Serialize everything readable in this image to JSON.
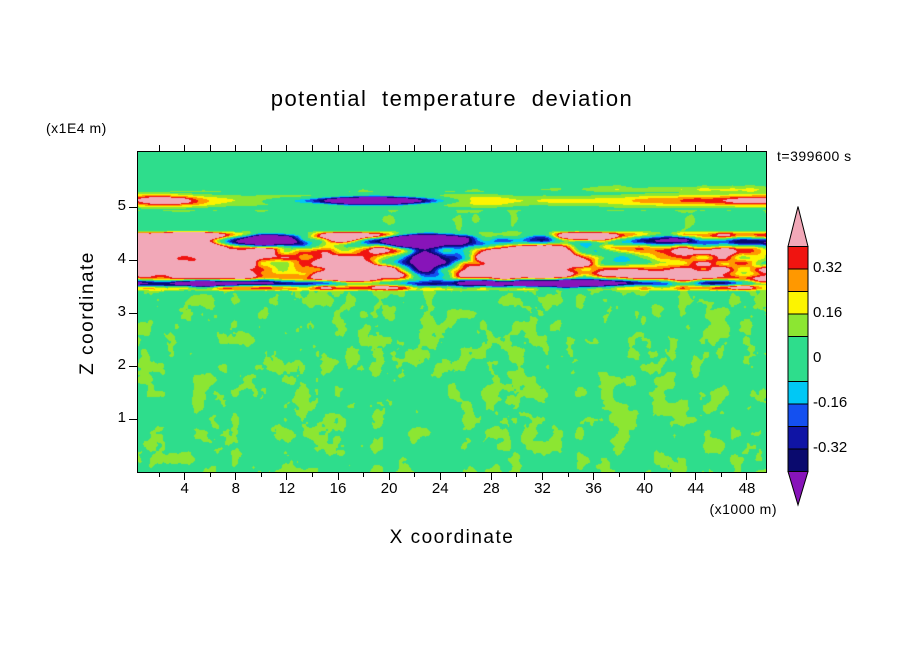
{
  "chart_data": {
    "type": "heatmap",
    "title": "potential temperature deviation",
    "time_label": "t=399600 s",
    "x_axis": {
      "label": "X coordinate",
      "unit": "(x1000 m)",
      "ticks": [
        4,
        8,
        12,
        16,
        20,
        24,
        28,
        32,
        36,
        40,
        44,
        48
      ],
      "minor_tick_step": 2,
      "range": [
        0,
        49.5
      ]
    },
    "y_axis": {
      "label": "Z coordinate",
      "unit": "(x1E4 m)",
      "ticks": [
        1,
        2,
        3,
        4,
        5
      ],
      "range": [
        0,
        6.05
      ]
    },
    "value_bands": [
      [
        -9,
        -0.4,
        "#8714B9"
      ],
      [
        -0.4,
        -0.32,
        "#0A0A6E"
      ],
      [
        -0.32,
        -0.24,
        "#0F14A5"
      ],
      [
        -0.24,
        -0.16,
        "#1450F0"
      ],
      [
        -0.16,
        -0.08,
        "#00C8F5"
      ],
      [
        -0.08,
        0.08,
        "#2EDD8C"
      ],
      [
        0.08,
        0.16,
        "#8CE632"
      ],
      [
        0.16,
        0.24,
        "#FCF400"
      ],
      [
        0.24,
        0.32,
        "#FF9800"
      ],
      [
        0.32,
        0.4,
        "#F01410"
      ],
      [
        0.4,
        9,
        "#F2A8B8"
      ]
    ],
    "colorbar": {
      "labels": [
        {
          "text": "0.32",
          "value": 0.32
        },
        {
          "text": "0.16",
          "value": 0.16
        },
        {
          "text": "0",
          "value": 0
        },
        {
          "text": "-0.16",
          "value": -0.16
        },
        {
          "text": "-0.32",
          "value": -0.32
        }
      ]
    },
    "features": [
      {
        "name": "boundary-layer-mottling",
        "z_range": [
          0,
          3.45
        ],
        "description": "fine turbulent mottling, values between 0 and +0.16 (green with yellow-green patches)"
      },
      {
        "name": "inversion-layer",
        "z_range": [
          3.45,
          4.52
        ],
        "description": "strong horizontally elongated anomalies spanning below -0.4 (purple/navy lenses) to above +0.4 (pink/red background)"
      },
      {
        "name": "dark-sub-band-lower",
        "z": 3.57,
        "description": "thin nearly continuous navy negative streak at layer base"
      },
      {
        "name": "dark-sub-band-upper",
        "z": 4.36,
        "description": "broken navy/purple lenses near layer top"
      },
      {
        "name": "quiet-gap",
        "z_range": [
          4.55,
          4.95
        ],
        "description": "near-zero uniform green background"
      },
      {
        "name": "upper-streak-band",
        "z_range": [
          4.95,
          5.35
        ],
        "description": "wave streaks of orange/yellow/red positives with one long navy negative lens near x = 14-23"
      }
    ]
  }
}
